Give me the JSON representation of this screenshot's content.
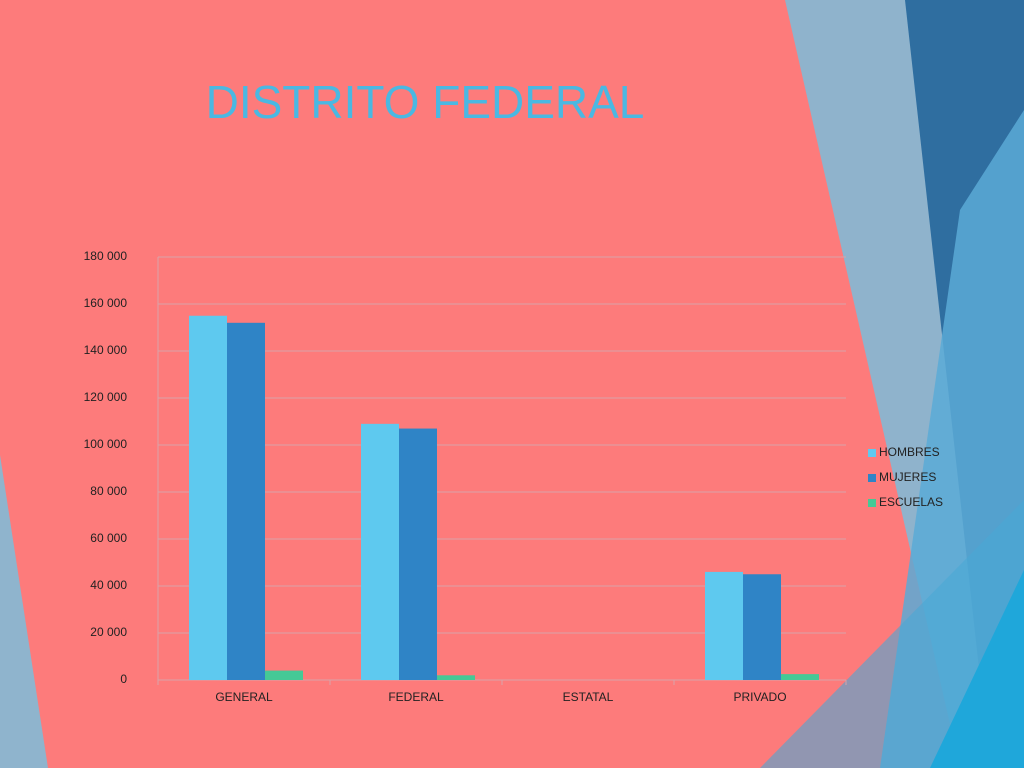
{
  "chart_data": {
    "type": "bar",
    "title": "DISTRITO FEDERAL",
    "categories": [
      "GENERAL",
      "FEDERAL",
      "ESTATAL",
      "PRIVADO"
    ],
    "series": [
      {
        "name": "HOMBRES",
        "color": "#5ec9ef",
        "values": [
          155000,
          109000,
          0,
          46000
        ]
      },
      {
        "name": "MUJERES",
        "color": "#2f84c6",
        "values": [
          152000,
          107000,
          0,
          45000
        ]
      },
      {
        "name": "ESCUELAS",
        "color": "#45c996",
        "values": [
          4000,
          2000,
          0,
          2500
        ]
      }
    ],
    "ylim": [
      0,
      180000
    ],
    "yticks": [
      0,
      {
        "value": 20000,
        "label": "20 000"
      },
      {
        "value": 40000,
        "label": "40 000"
      },
      {
        "value": 60000,
        "label": "60 000"
      },
      {
        "value": 80000,
        "label": "80 000"
      },
      {
        "value": 100000,
        "label": "100 000"
      },
      {
        "value": 120000,
        "label": "120 000"
      },
      {
        "value": 140000,
        "label": "140 000"
      },
      {
        "value": 160000,
        "label": "160 000"
      },
      {
        "value": 180000,
        "label": "180 000"
      }
    ],
    "grid": true,
    "legend": "right"
  }
}
